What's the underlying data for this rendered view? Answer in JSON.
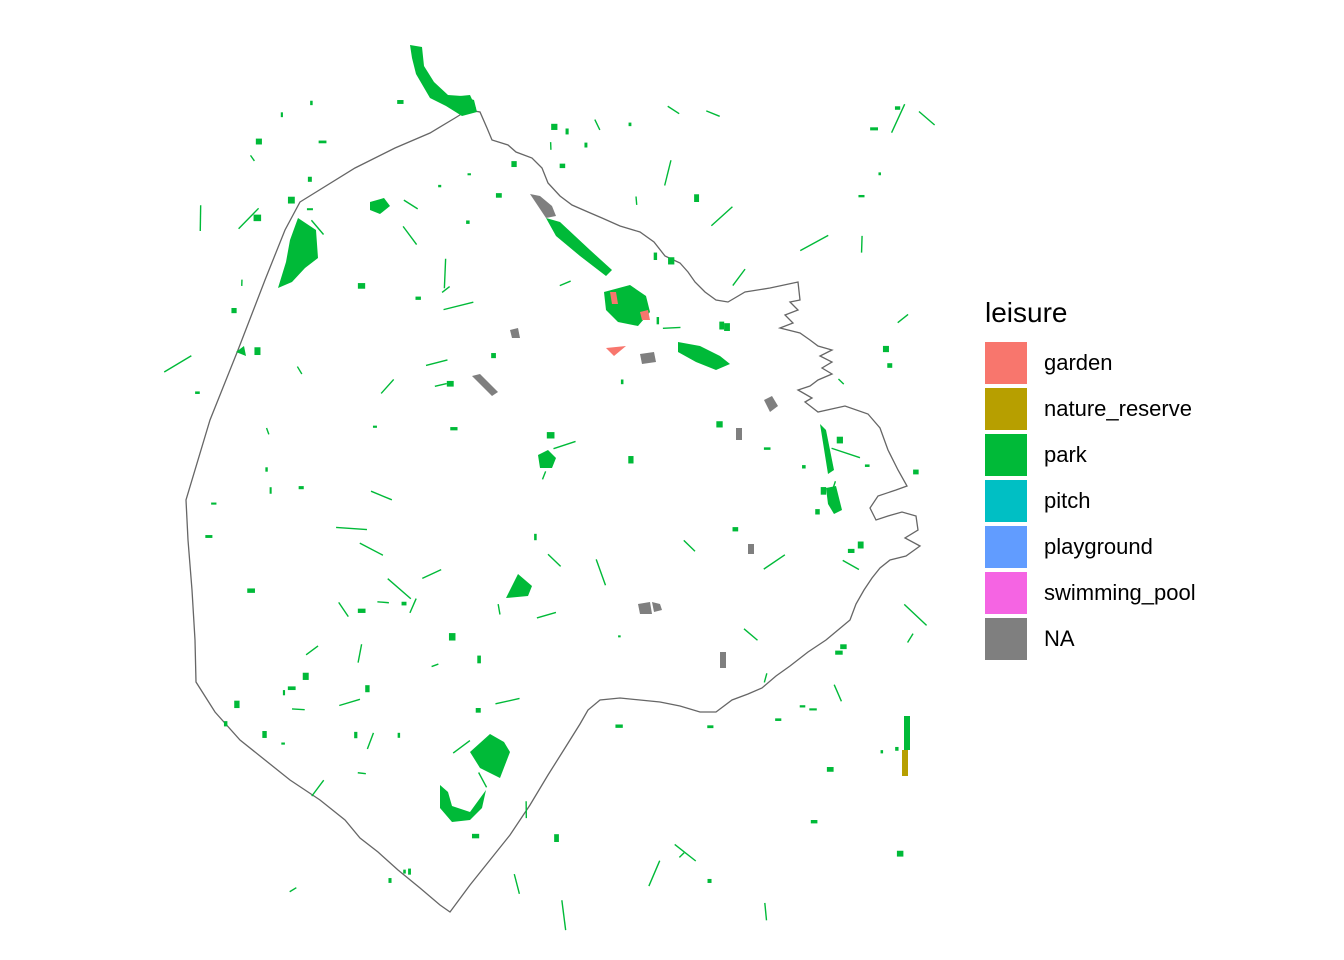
{
  "legend": {
    "title": "leisure",
    "items": [
      {
        "key": "garden",
        "label": "garden",
        "color": "#F8766D"
      },
      {
        "key": "nature_reserve",
        "label": "nature_reserve",
        "color": "#B79F00"
      },
      {
        "key": "park",
        "label": "park",
        "color": "#00BA38"
      },
      {
        "key": "pitch",
        "label": "pitch",
        "color": "#00BFC4"
      },
      {
        "key": "playground",
        "label": "playground",
        "color": "#619CFF"
      },
      {
        "key": "swimming_pool",
        "label": "swimming_pool",
        "color": "#F564E3"
      },
      {
        "key": "NA",
        "label": "NA",
        "color": "#7F7F7F"
      }
    ]
  },
  "colors": {
    "boundary": "#666666",
    "background": "#FFFFFF"
  }
}
